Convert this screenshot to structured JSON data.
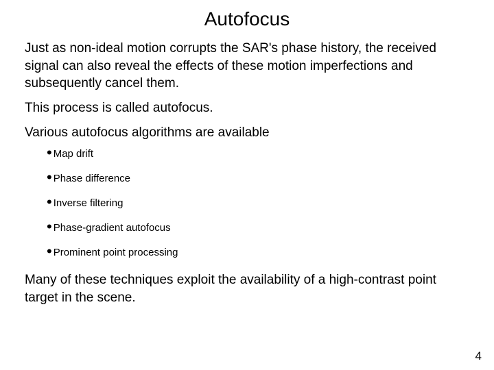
{
  "title": "Autofocus",
  "para1": "Just as non-ideal motion corrupts the SAR's phase history, the received signal can also reveal the effects of these motion imperfections and subsequently cancel them.",
  "para2": "This process is called autofocus.",
  "para3": "Various autofocus algorithms are available",
  "bullets": {
    "b0": "Map drift",
    "b1": "Phase difference",
    "b2": "Inverse filtering",
    "b3": "Phase-gradient autofocus",
    "b4": "Prominent point processing"
  },
  "para4": "Many of these techniques exploit the availability of a high-contrast point target in the scene.",
  "page_number": "4",
  "colors": {
    "background": "#ffffff",
    "text": "#000000"
  },
  "typography": {
    "title_fontsize": 28,
    "body_fontsize": 19,
    "bullet_fontsize": 15,
    "pagenum_fontsize": 17,
    "font_family": "Arial"
  }
}
